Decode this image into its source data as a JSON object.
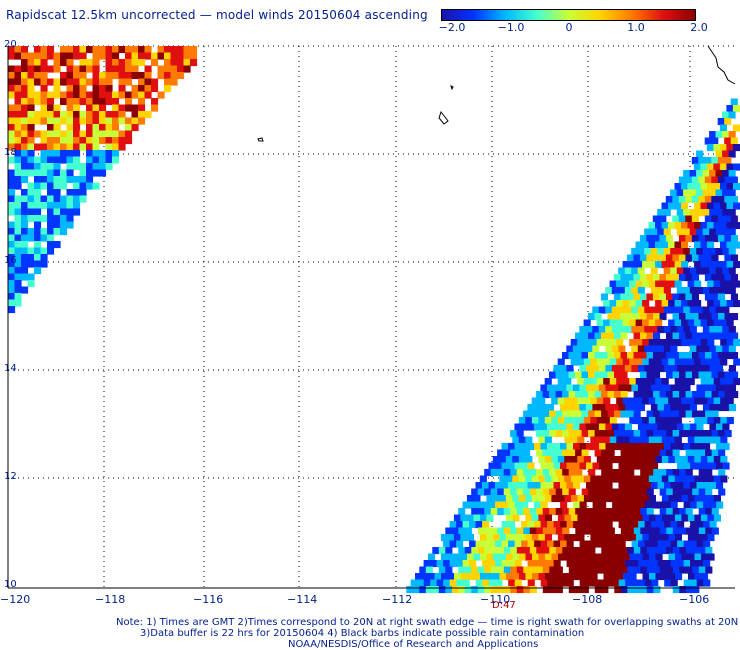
{
  "title": "Rapidscat 12.5km uncorrected — model winds 20150604 ascending",
  "colorbar": {
    "tick_labels": [
      "−2.0",
      "−1.0",
      "0",
      "1.0",
      "2.0"
    ],
    "colors": [
      "#1a12a8",
      "#0034ff",
      "#00b8ff",
      "#45ffd0",
      "#c8ff38",
      "#ffd400",
      "#ff7a00",
      "#e01010",
      "#8a0000"
    ]
  },
  "axes": {
    "lon_labels": [
      "−120",
      "−118",
      "−116",
      "−114",
      "−112",
      "−110",
      "−108",
      "−106"
    ],
    "lat_labels": [
      "20",
      "18",
      "16",
      "14",
      "12",
      "10"
    ],
    "grid": "dotted"
  },
  "time_label": "D:47",
  "notes": [
    "Note: 1) Times are GMT 2)Times correspond to 20N at right swath edge — time is right swath for overlapping swaths at 20N",
    "3)Data buffer is 22 hrs for 20150604 4) Black barbs indicate possible rain contamination",
    "NOAA/NESDIS/Office of Research and Applications"
  ]
}
